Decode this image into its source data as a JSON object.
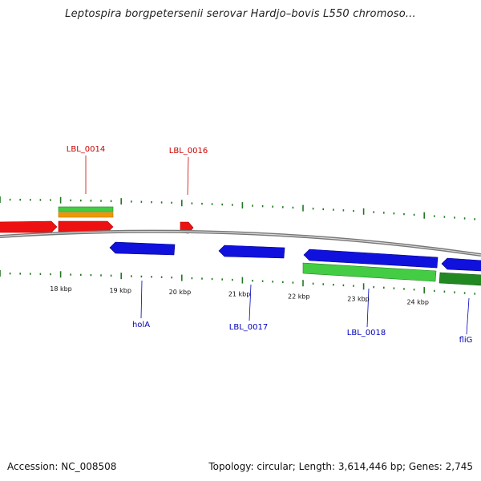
{
  "title": "Leptospira borgpetersenii serovar Hardjo–bovis L550 chromoso...",
  "footer": {
    "accession": "Accession: NC_008508",
    "summary": "Topology: circular; Length: 3,614,446 bp; Genes: 2,745"
  },
  "colors": {
    "forward_cds": "#ee1111",
    "reverse_cds": "#1111dd",
    "forward_label": "#cc0000",
    "reverse_label": "#0000bb",
    "gene_light_green": "#44cc44",
    "gene_dark_green": "#228822",
    "gene_orange": "#ee9900",
    "tick_green": "#227722",
    "backbone": "#888888"
  },
  "scale": {
    "ticks": [
      {
        "kbp": 18,
        "label": "18 kbp"
      },
      {
        "kbp": 19,
        "label": "19 kbp"
      },
      {
        "kbp": 20,
        "label": "20 kbp"
      },
      {
        "kbp": 21,
        "label": "21 kbp"
      },
      {
        "kbp": 22,
        "label": "22 kbp"
      },
      {
        "kbp": 23,
        "label": "23 kbp"
      },
      {
        "kbp": 24,
        "label": "24 kbp"
      }
    ]
  },
  "labels": [
    {
      "name": "LBL_0014",
      "strand": "forward"
    },
    {
      "name": "LBL_0016",
      "strand": "forward"
    },
    {
      "name": "holA",
      "strand": "reverse"
    },
    {
      "name": "LBL_0017",
      "strand": "reverse"
    },
    {
      "name": "LBL_0018",
      "strand": "reverse"
    },
    {
      "name": "fliG",
      "strand": "reverse"
    }
  ]
}
